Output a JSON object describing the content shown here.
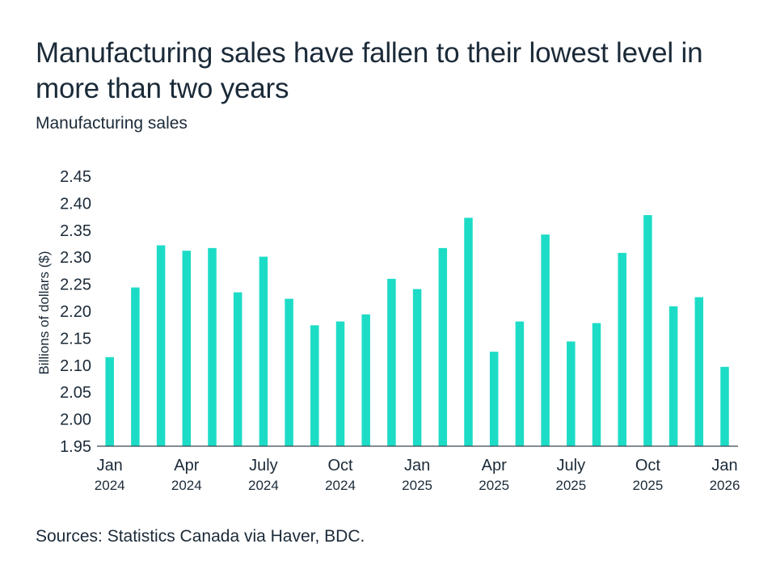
{
  "header": {
    "title": "Manufacturing sales have fallen to their lowest level in more than two years",
    "subtitle": "Manufacturing sales"
  },
  "footer": {
    "source": "Sources: Statistics Canada via Haver, BDC."
  },
  "colors": {
    "bar": "#1ddcc6",
    "text": "#1b2a38",
    "axis": "#3a4650"
  },
  "chart_data": {
    "type": "bar",
    "title": "Manufacturing sales",
    "xlabel": "",
    "ylabel": "Billions of dollars ($)",
    "ylim": [
      1.95,
      2.45
    ],
    "yticks": [
      "1.95",
      "2.00",
      "2.05",
      "2.10",
      "2.15",
      "2.20",
      "2.25",
      "2.30",
      "2.35",
      "2.40",
      "2.45"
    ],
    "grid": false,
    "categories": [
      "Jan 2024",
      "Feb 2024",
      "Mar 2024",
      "Apr 2024",
      "May 2024",
      "Jun 2024",
      "Jul 2024",
      "Aug 2024",
      "Sep 2024",
      "Oct 2024",
      "Nov 2024",
      "Dec 2024",
      "Jan 2025",
      "Feb 2025",
      "Mar 2025",
      "Apr 2025",
      "May 2025",
      "Jun 2025",
      "Jul 2025",
      "Aug 2025",
      "Sep 2025",
      "Oct 2025",
      "Nov 2025",
      "Dec 2025",
      "Jan 2026"
    ],
    "values": [
      2.115,
      2.244,
      2.322,
      2.312,
      2.317,
      2.235,
      2.301,
      2.223,
      2.174,
      2.181,
      2.194,
      2.26,
      2.241,
      2.317,
      2.373,
      2.125,
      2.181,
      2.342,
      2.144,
      2.178,
      2.308,
      2.378,
      2.209,
      2.226,
      2.097
    ],
    "xtick_labels": [
      {
        "index": 0,
        "month": "Jan",
        "year": "2024"
      },
      {
        "index": 3,
        "month": "Apr",
        "year": "2024"
      },
      {
        "index": 6,
        "month": "July",
        "year": "2024"
      },
      {
        "index": 9,
        "month": "Oct",
        "year": "2024"
      },
      {
        "index": 12,
        "month": "Jan",
        "year": "2025"
      },
      {
        "index": 15,
        "month": "Apr",
        "year": "2025"
      },
      {
        "index": 18,
        "month": "July",
        "year": "2025"
      },
      {
        "index": 21,
        "month": "Oct",
        "year": "2025"
      },
      {
        "index": 24,
        "month": "Jan",
        "year": "2026"
      }
    ]
  }
}
